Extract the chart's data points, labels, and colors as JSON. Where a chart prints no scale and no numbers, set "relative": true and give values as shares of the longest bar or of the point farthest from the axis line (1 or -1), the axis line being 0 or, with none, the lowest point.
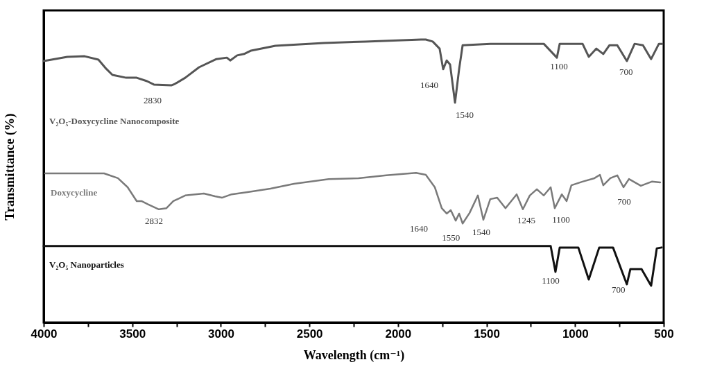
{
  "chart_data": {
    "type": "line",
    "relative": true,
    "xlabel": "Wavelength (cm⁻¹)",
    "ylabel": "Transmittance (%)",
    "xlim": [
      4000,
      500
    ],
    "xticks": [
      4000,
      {
        "value": 3750,
        "label": null
      },
      3500,
      {
        "value": 3250,
        "label": null
      },
      3000,
      {
        "value": 2750,
        "label": null
      },
      2500,
      {
        "value": 2250,
        "label": null
      },
      2000,
      {
        "value": 1750,
        "label": null
      },
      1500,
      {
        "value": 1250,
        "label": null
      },
      1000,
      {
        "value": 750,
        "label": null
      },
      500
    ],
    "grid": false,
    "legend": false,
    "series": [
      {
        "name": "V₂O₅-Doxycycline Nanocomposite",
        "color": "#555555",
        "x": [
          4000,
          3867,
          3769,
          3691,
          3652,
          3612,
          3534,
          3475,
          3417,
          3378,
          3280,
          3260,
          3201,
          3123,
          3025,
          2966,
          2947,
          2908,
          2869,
          2829,
          2692,
          2418,
          2183,
          1870,
          1843,
          1804,
          1765,
          1745,
          1725,
          1706,
          1678,
          1655,
          1635,
          1479,
          1177,
          1103,
          1087,
          958,
          923,
          880,
          841,
          806,
          762,
          708,
          664,
          617,
          571,
          527,
          508
        ],
        "values": [
          0.924,
          0.939,
          0.941,
          0.929,
          0.9,
          0.875,
          0.865,
          0.865,
          0.853,
          0.841,
          0.838,
          0.843,
          0.865,
          0.902,
          0.931,
          0.936,
          0.926,
          0.944,
          0.949,
          0.961,
          0.978,
          0.988,
          0.993,
          1,
          1,
          0.993,
          0.968,
          0.895,
          0.926,
          0.912,
          0.777,
          0.895,
          0.98,
          0.985,
          0.985,
          0.936,
          0.985,
          0.985,
          0.939,
          0.968,
          0.949,
          0.98,
          0.98,
          0.924,
          0.985,
          0.98,
          0.931,
          0.985,
          0.985
        ]
      },
      {
        "name": "Doxycycline",
        "color": "#7a7a7a",
        "x": [
          3992,
          3659,
          3581,
          3526,
          3475,
          3448,
          3409,
          3350,
          3307,
          3268,
          3201,
          3096,
          3033,
          2994,
          2939,
          2849,
          2720,
          2587,
          2391,
          2223,
          2066,
          1898,
          1843,
          1792,
          1753,
          1725,
          1702,
          1674,
          1655,
          1635,
          1596,
          1549,
          1518,
          1479,
          1440,
          1393,
          1330,
          1295,
          1256,
          1216,
          1177,
          1138,
          1115,
          1075,
          1048,
          1021,
          958,
          891,
          860,
          841,
          801,
          762,
          727,
          696,
          629,
          567,
          520
        ],
        "values": [
          0.527,
          0.527,
          0.51,
          0.478,
          0.429,
          0.429,
          0.417,
          0.4,
          0.404,
          0.429,
          0.449,
          0.456,
          0.446,
          0.441,
          0.453,
          0.461,
          0.473,
          0.49,
          0.507,
          0.51,
          0.52,
          0.529,
          0.522,
          0.478,
          0.404,
          0.385,
          0.397,
          0.36,
          0.385,
          0.35,
          0.387,
          0.449,
          0.363,
          0.436,
          0.441,
          0.404,
          0.453,
          0.4,
          0.449,
          0.471,
          0.449,
          0.478,
          0.404,
          0.453,
          0.429,
          0.485,
          0.498,
          0.51,
          0.522,
          0.485,
          0.51,
          0.52,
          0.478,
          0.507,
          0.483,
          0.498,
          0.495
        ]
      },
      {
        "name": "V₂O₅ Nanoparticles",
        "color": "#111111",
        "x": [
          4000,
          1138,
          1111,
          1087,
          982,
          923,
          864,
          786,
          708,
          688,
          625,
          571,
          539,
          512
        ],
        "values": [
          0.27,
          0.27,
          0.179,
          0.265,
          0.265,
          0.152,
          0.265,
          0.265,
          0.135,
          0.189,
          0.189,
          0.13,
          0.262,
          0.265
        ]
      }
    ],
    "annotations": [
      {
        "text": "2830",
        "x": 3280,
        "y": 0.838
      },
      {
        "text": "1640",
        "x": 1745,
        "y": 0.895
      },
      {
        "text": "1540",
        "x": 1678,
        "y": 0.777
      },
      {
        "text": "1100",
        "x": 1103,
        "y": 0.936
      },
      {
        "text": "700",
        "x": 708,
        "y": 0.924
      },
      {
        "text": "2832",
        "x": 3350,
        "y": 0.4
      },
      {
        "text": "1640",
        "x": 1753,
        "y": 0.404
      },
      {
        "text": "1550",
        "x": 1674,
        "y": 0.36
      },
      {
        "text": "1540",
        "x": 1635,
        "y": 0.35
      },
      {
        "text": "1245",
        "x": 1295,
        "y": 0.4
      },
      {
        "text": "1100",
        "x": 1115,
        "y": 0.404
      },
      {
        "text": "700",
        "x": 727,
        "y": 0.478
      },
      {
        "text": "1100",
        "x": 1111,
        "y": 0.179
      },
      {
        "text": "700",
        "x": 708,
        "y": 0.135
      }
    ]
  }
}
